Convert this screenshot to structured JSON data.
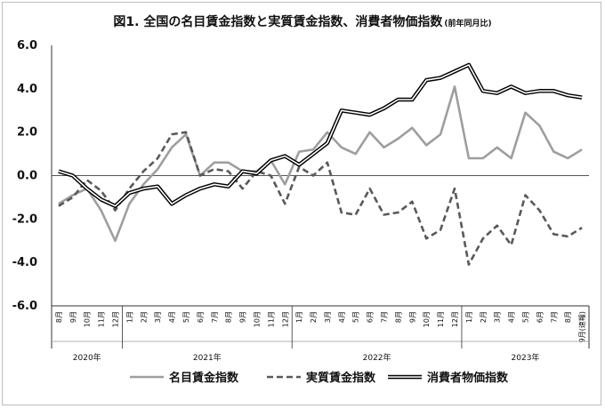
{
  "chart_data": {
    "type": "line",
    "title": "図1. 全国の名目賃金指数と実質賃金指数、消費者物価指数",
    "title_note": "(前年同月比)",
    "y_ticks": [
      "6.0",
      "4.0",
      "2.0",
      "0.0",
      "-2.0",
      "-4.0",
      "-6.0"
    ],
    "ylim": [
      -6,
      6
    ],
    "x": [
      "8月",
      "9月",
      "10月",
      "11月",
      "12月",
      "1月",
      "2月",
      "3月",
      "4月",
      "5月",
      "6月",
      "7月",
      "8月",
      "9月",
      "10月",
      "11月",
      "12月",
      "1月",
      "2月",
      "3月",
      "4月",
      "5月",
      "6月",
      "7月",
      "8月",
      "9月",
      "10月",
      "11月",
      "12月",
      "1月",
      "2月",
      "3月",
      "4月",
      "5月",
      "6月",
      "7月",
      "8月",
      "9月(速報)"
    ],
    "years": [
      {
        "label": "2020年",
        "start": 0,
        "end": 4
      },
      {
        "label": "2021年",
        "start": 5,
        "end": 16
      },
      {
        "label": "2022年",
        "start": 17,
        "end": 28
      },
      {
        "label": "2023年",
        "start": 29,
        "end": 37
      }
    ],
    "grid": false,
    "legend_position": "bottom",
    "series": [
      {
        "name": "名目賃金指数",
        "color": "#9e9e9e",
        "style": "solid",
        "values": [
          -1.3,
          -0.9,
          -0.6,
          -1.6,
          -3.0,
          -1.3,
          -0.4,
          0.3,
          1.3,
          1.9,
          0.0,
          0.6,
          0.6,
          0.2,
          0.2,
          0.7,
          -0.4,
          1.1,
          1.2,
          2.0,
          1.3,
          1.0,
          2.0,
          1.3,
          1.7,
          2.2,
          1.4,
          1.9,
          4.1,
          0.8,
          0.8,
          1.3,
          0.8,
          2.9,
          2.3,
          1.1,
          0.8,
          1.2
        ]
      },
      {
        "name": "実質賃金指数",
        "color": "#595959",
        "style": "dashed",
        "values": [
          -1.4,
          -1.0,
          -0.2,
          -0.7,
          -1.6,
          -0.6,
          0.2,
          0.8,
          1.9,
          2.0,
          0.0,
          0.3,
          0.2,
          -0.6,
          0.2,
          0.0,
          -1.3,
          0.4,
          0.0,
          0.6,
          -1.7,
          -1.8,
          -0.6,
          -1.8,
          -1.7,
          -1.2,
          -2.9,
          -2.5,
          -0.6,
          -4.1,
          -2.9,
          -2.3,
          -3.2,
          -0.9,
          -1.6,
          -2.7,
          -2.8,
          -2.4
        ]
      },
      {
        "name": "消費者物価指数",
        "color": "#000000",
        "style": "double",
        "values": [
          0.2,
          0.0,
          -0.6,
          -1.1,
          -1.4,
          -0.8,
          -0.6,
          -0.5,
          -1.3,
          -0.9,
          -0.6,
          -0.4,
          -0.5,
          0.2,
          0.1,
          0.7,
          0.9,
          0.5,
          1.0,
          1.5,
          3.0,
          2.9,
          2.8,
          3.1,
          3.5,
          3.5,
          4.4,
          4.5,
          4.8,
          5.1,
          3.9,
          3.8,
          4.1,
          3.8,
          3.9,
          3.9,
          3.7,
          3.6
        ]
      }
    ]
  }
}
